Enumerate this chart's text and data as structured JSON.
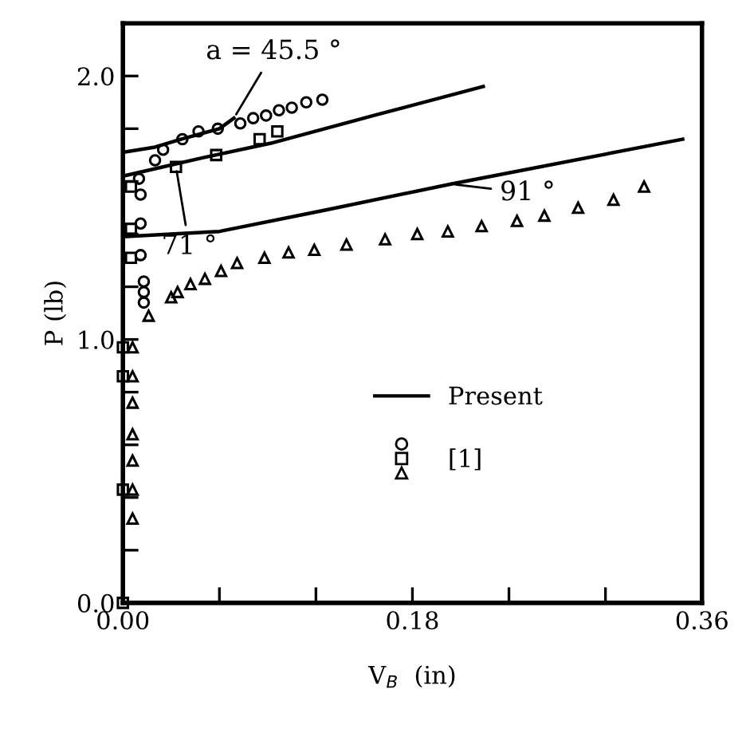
{
  "chart_data": {
    "type": "line",
    "xlabel": "V$_{B}$  (in)",
    "ylabel": "P (lb)",
    "xlim": [
      0,
      0.36
    ],
    "ylim": [
      0,
      2.2
    ],
    "xticks": [
      {
        "value": 0,
        "label": "0.00"
      },
      {
        "value": 0.06,
        "label": null
      },
      {
        "value": 0.12,
        "label": null
      },
      {
        "value": 0.18,
        "label": "0.18"
      },
      {
        "value": 0.24,
        "label": null
      },
      {
        "value": 0.3,
        "label": null
      },
      {
        "value": 0.36,
        "label": "0.36"
      }
    ],
    "yticks": [
      {
        "value": 0,
        "label": "0.0"
      },
      {
        "value": 0.2,
        "label": null
      },
      {
        "value": 0.4,
        "label": null
      },
      {
        "value": 0.6,
        "label": null
      },
      {
        "value": 0.8,
        "label": null
      },
      {
        "value": 1.0,
        "label": "1.0"
      },
      {
        "value": 1.2,
        "label": null
      },
      {
        "value": 1.4,
        "label": null
      },
      {
        "value": 1.6,
        "label": null
      },
      {
        "value": 1.8,
        "label": null
      },
      {
        "value": 2.0,
        "label": "2.0"
      }
    ],
    "grid": false,
    "legend": "bottom",
    "series": [
      {
        "name": "Present",
        "color": "#000000",
        "x": [
          0,
          0.02,
          0.036,
          0.06,
          0.069
        ],
        "values": [
          1.71,
          1.73,
          1.76,
          1.8,
          1.84
        ]
      },
      {
        "color": "#000000",
        "x": [
          0,
          0.05,
          0.092,
          0.159,
          0.224
        ],
        "values": [
          1.62,
          1.69,
          1.745,
          1.855,
          1.96
        ]
      },
      {
        "color": "#000000",
        "x": [
          0,
          0.06,
          0.125,
          0.204,
          0.348
        ],
        "values": [
          1.39,
          1.41,
          1.49,
          1.59,
          1.76
        ]
      },
      {
        "name": "[1]",
        "type": "scatter",
        "marker": "circle",
        "color": "#000000",
        "x": [
          0.013,
          0.013,
          0.013,
          0.011,
          0.011,
          0.011,
          0.01,
          0.02,
          0.025,
          0.037,
          0.047,
          0.059,
          0.073,
          0.081,
          0.089,
          0.097,
          0.105,
          0.114,
          0.124
        ],
        "values": [
          1.14,
          1.18,
          1.22,
          1.32,
          1.44,
          1.55,
          1.61,
          1.68,
          1.72,
          1.76,
          1.79,
          1.8,
          1.82,
          1.84,
          1.85,
          1.87,
          1.88,
          1.9,
          1.91
        ]
      },
      {
        "type": "scatter",
        "marker": "square",
        "color": "#000000",
        "x": [
          0,
          0,
          0,
          0,
          0.005,
          0.005,
          0.005,
          0.033,
          0.058,
          0.085,
          0.096
        ],
        "values": [
          0,
          0.43,
          0.86,
          0.97,
          1.31,
          1.42,
          1.58,
          1.655,
          1.7,
          1.76,
          1.79
        ]
      },
      {
        "type": "scatter",
        "marker": "triangle",
        "color": "#000000",
        "x": [
          0.006,
          0.006,
          0.006,
          0.006,
          0.006,
          0.006,
          0.006,
          0.016,
          0.03,
          0.034,
          0.042,
          0.051,
          0.061,
          0.071,
          0.088,
          0.103,
          0.119,
          0.139,
          0.163,
          0.183,
          0.202,
          0.223,
          0.245,
          0.262,
          0.283,
          0.305,
          0.324
        ],
        "values": [
          0.32,
          0.43,
          0.54,
          0.64,
          0.76,
          0.86,
          0.97,
          1.09,
          1.16,
          1.18,
          1.21,
          1.23,
          1.26,
          1.29,
          1.31,
          1.33,
          1.34,
          1.36,
          1.38,
          1.4,
          1.41,
          1.43,
          1.45,
          1.47,
          1.5,
          1.53,
          1.58
        ]
      }
    ],
    "annotations": [
      {
        "text": "a = 45.5 °",
        "x": 0.069,
        "y": 1.84
      },
      {
        "text": "71 °",
        "x": 0.033,
        "y": 1.655
      },
      {
        "text": "91 °",
        "x": 0.204,
        "y": 1.59
      }
    ]
  }
}
